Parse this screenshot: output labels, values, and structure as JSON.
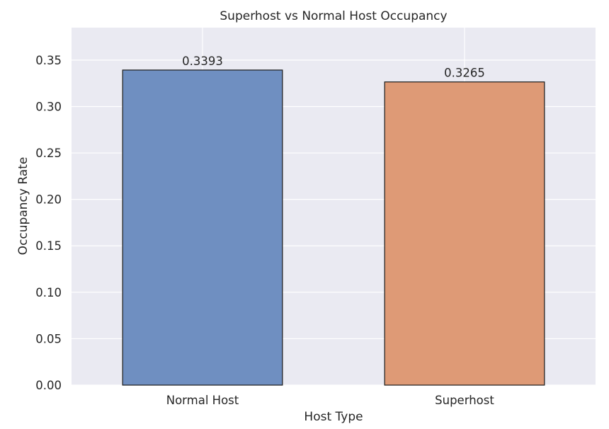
{
  "chart_data": {
    "type": "bar",
    "title": "Superhost vs Normal Host Occupancy",
    "xlabel": "Host Type",
    "ylabel": "Occupancy Rate",
    "categories": [
      "Normal Host",
      "Superhost"
    ],
    "values": [
      0.3393,
      0.3265
    ],
    "data_labels": [
      "0.3393",
      "0.3265"
    ],
    "colors": [
      "#6f8fc1",
      "#de9a76"
    ],
    "ylim": [
      0,
      0.385
    ],
    "yticks": [
      0.0,
      0.05,
      0.1,
      0.15,
      0.2,
      0.25,
      0.3,
      0.35
    ],
    "ytick_labels": [
      "0.00",
      "0.05",
      "0.10",
      "0.15",
      "0.20",
      "0.25",
      "0.30",
      "0.35"
    ],
    "grid": true,
    "background": "#eaeaf2"
  }
}
